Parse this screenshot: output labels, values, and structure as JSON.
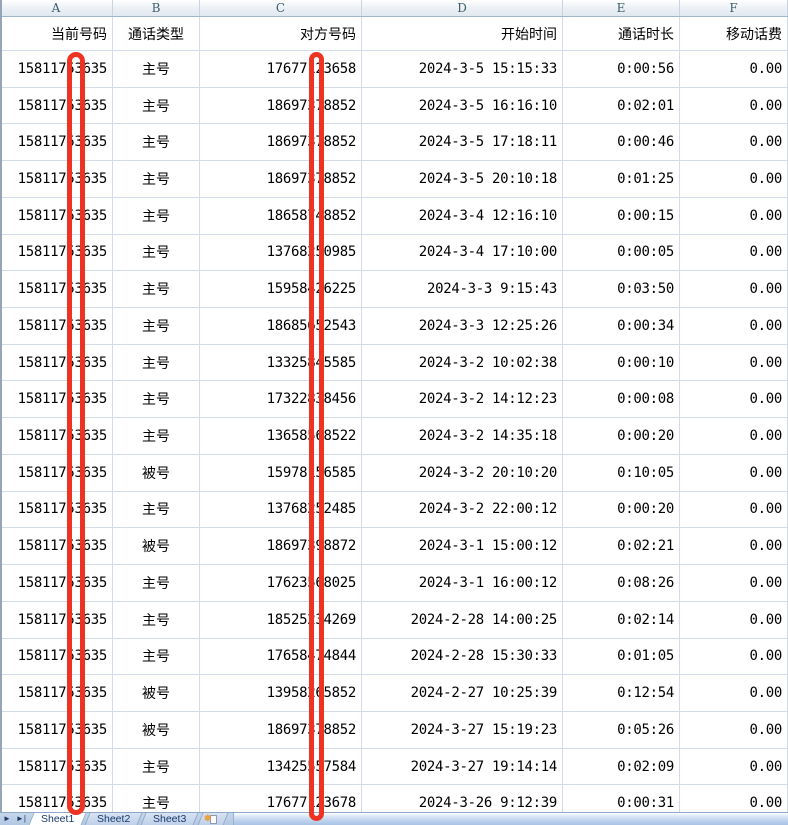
{
  "sheet": {
    "column_letters": [
      "A",
      "B",
      "C",
      "D",
      "E",
      "F"
    ],
    "field_headers": [
      "当前号码",
      "通话类型",
      "对方号码",
      "开始时间",
      "通话时长",
      "移动话费"
    ],
    "rows": [
      [
        "15811753635",
        "主号",
        "17677123658",
        "2024-3-5 15:15:33",
        "0:00:56",
        "0.00"
      ],
      [
        "15811753635",
        "主号",
        "18697378852",
        "2024-3-5 16:16:10",
        "0:02:01",
        "0.00"
      ],
      [
        "15811753635",
        "主号",
        "18697378852",
        "2024-3-5 17:18:11",
        "0:00:46",
        "0.00"
      ],
      [
        "15811753635",
        "主号",
        "18697378852",
        "2024-3-5 20:10:18",
        "0:01:25",
        "0.00"
      ],
      [
        "15811753635",
        "主号",
        "18658748852",
        "2024-3-4 12:16:10",
        "0:00:15",
        "0.00"
      ],
      [
        "15811753635",
        "主号",
        "13768250985",
        "2024-3-4 17:10:00",
        "0:00:05",
        "0.00"
      ],
      [
        "15811753635",
        "主号",
        "15958426225",
        "2024-3-3 9:15:43",
        "0:03:50",
        "0.00"
      ],
      [
        "15811753635",
        "主号",
        "18685652543",
        "2024-3-3 12:25:26",
        "0:00:34",
        "0.00"
      ],
      [
        "15811753635",
        "主号",
        "13325845585",
        "2024-3-2 10:02:38",
        "0:00:10",
        "0.00"
      ],
      [
        "15811753635",
        "主号",
        "17322838456",
        "2024-3-2 14:12:23",
        "0:00:08",
        "0.00"
      ],
      [
        "15811753635",
        "主号",
        "13658568522",
        "2024-3-2 14:35:18",
        "0:00:20",
        "0.00"
      ],
      [
        "15811753635",
        "被号",
        "15978156585",
        "2024-3-2 20:10:20",
        "0:10:05",
        "0.00"
      ],
      [
        "15811753635",
        "主号",
        "13768252485",
        "2024-3-2 22:00:12",
        "0:00:20",
        "0.00"
      ],
      [
        "15811753635",
        "被号",
        "18697398872",
        "2024-3-1 15:00:12",
        "0:02:21",
        "0.00"
      ],
      [
        "15811753635",
        "主号",
        "17623568025",
        "2024-3-1 16:00:12",
        "0:08:26",
        "0.00"
      ],
      [
        "15811753635",
        "主号",
        "18525234269",
        "2024-2-28 14:00:25",
        "0:02:14",
        "0.00"
      ],
      [
        "15811753635",
        "主号",
        "17658474844",
        "2024-2-28 15:30:33",
        "0:01:05",
        "0.00"
      ],
      [
        "15811753635",
        "被号",
        "13958265852",
        "2024-2-27 10:25:39",
        "0:12:54",
        "0.00"
      ],
      [
        "15811753635",
        "被号",
        "18697378852",
        "2024-3-27 15:19:23",
        "0:05:26",
        "0.00"
      ],
      [
        "15811753635",
        "主号",
        "13425557584",
        "2024-3-27 19:14:14",
        "0:02:09",
        "0.00"
      ],
      [
        "15811753635",
        "主号",
        "17677123678",
        "2024-3-26 9:12:39",
        "0:00:31",
        "0.00"
      ]
    ]
  },
  "tabs": {
    "nav": {
      "scroll_right": "►",
      "scroll_last": "►|"
    },
    "sheets": [
      "Sheet1",
      "Sheet2",
      "Sheet3"
    ],
    "active": "Sheet1",
    "active_index": 0,
    "insert_icon": "✱"
  },
  "annotations": {
    "redaction_color": "#ee3322",
    "description": "Two vertical red rounded-outline bars masking one digit of the phone numbers in column A and column C"
  }
}
